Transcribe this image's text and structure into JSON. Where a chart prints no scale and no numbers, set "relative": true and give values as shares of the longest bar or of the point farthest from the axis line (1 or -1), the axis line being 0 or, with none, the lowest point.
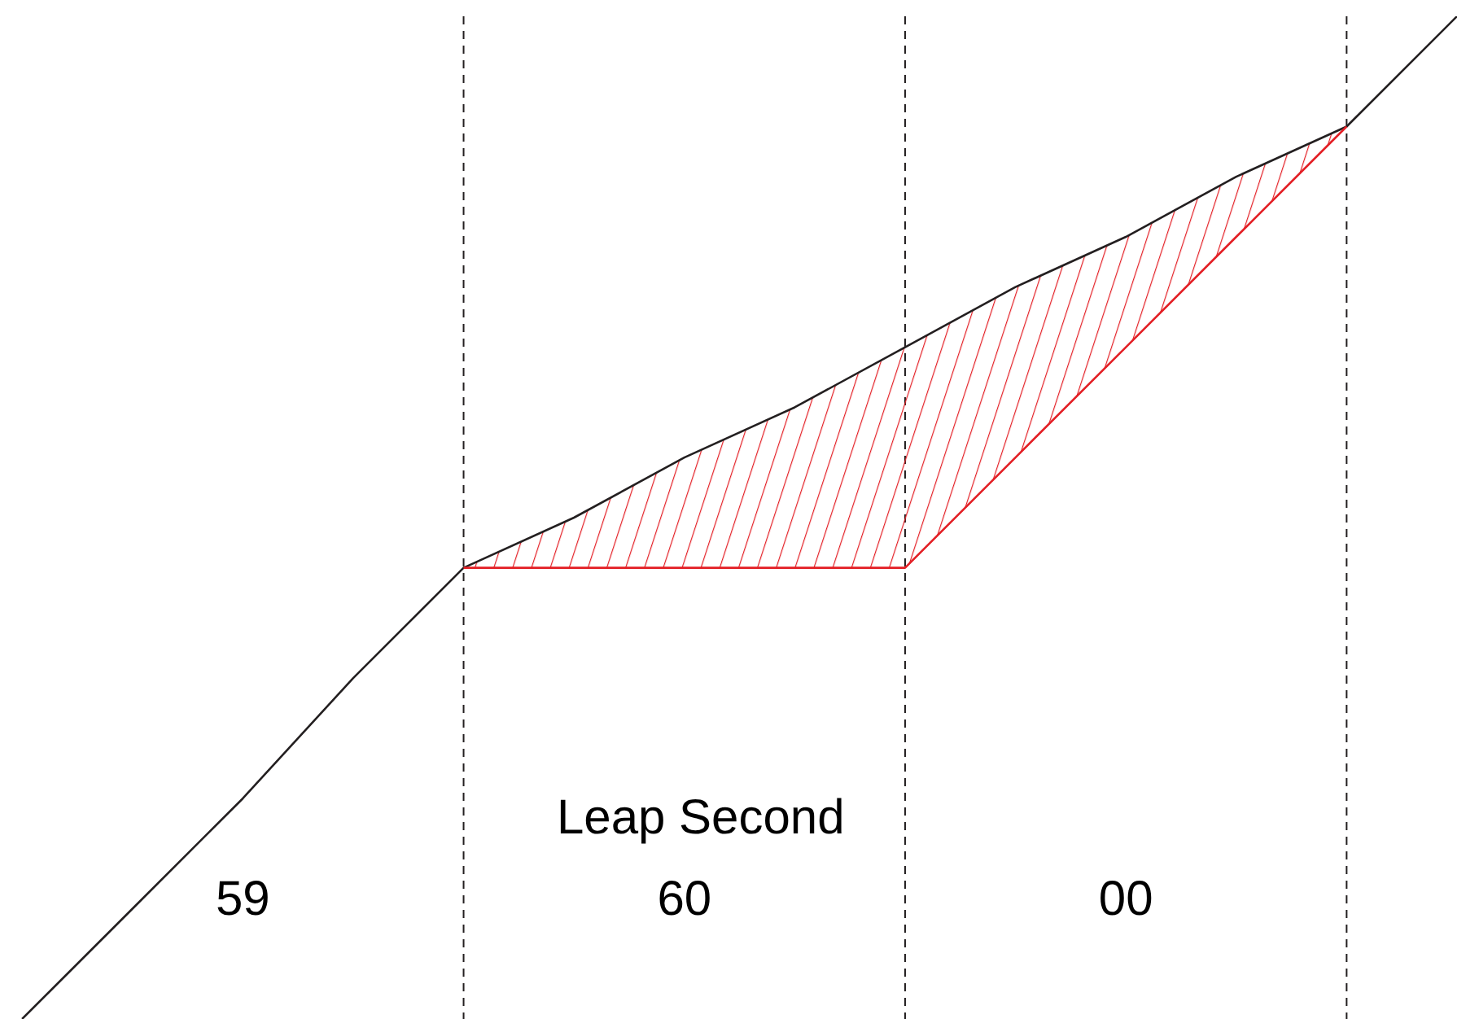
{
  "chart_data": {
    "type": "line",
    "relative": true,
    "categories": [
      null,
      null,
      null,
      null,
      null,
      null,
      null,
      null,
      null,
      null,
      null,
      null,
      null,
      null
    ],
    "series": [
      {
        "color": "#231f20",
        "values": [
          0,
          0.11,
          0.22,
          0.34,
          0.45,
          0.5,
          0.56,
          0.61,
          0.67,
          0.73,
          0.78,
          0.84,
          0.89,
          1
        ],
        "lower": [
          null,
          null,
          null,
          null,
          0.45,
          0.45,
          0.45,
          0.45,
          0.45,
          0.56,
          0.67,
          0.78,
          0.89,
          null
        ],
        "upper": [
          null,
          null,
          null,
          null,
          0.45,
          0.5,
          0.56,
          0.61,
          0.67,
          0.73,
          0.78,
          0.84,
          0.89,
          null
        ]
      },
      {
        "color": "#e31e24",
        "values": [
          null,
          null,
          null,
          null,
          0.45,
          0.45,
          0.45,
          0.45,
          0.45,
          0.56,
          0.67,
          0.78,
          0.89,
          null
        ]
      }
    ],
    "annotations": [
      "Leap Second",
      "59",
      "60",
      "00"
    ],
    "grid": "x",
    "marker": "none",
    "line_style": "solid"
  }
}
